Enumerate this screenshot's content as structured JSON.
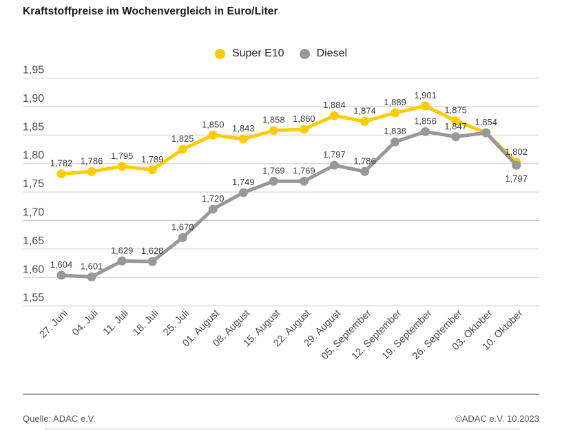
{
  "title": "Kraftstoffpreise im Wochenvergleich in Euro/Liter",
  "footer": {
    "source": "Quelle: ADAC e.V.",
    "copyright": "©ADAC e.V. 10.2023"
  },
  "colors": {
    "super_e10": "#ffcc00",
    "diesel": "#989898",
    "grid": "#cccccc",
    "axis_label": "#4a4a4a",
    "value_label": "#3c3c3c",
    "title_text": "#1a1a1a",
    "footer_text": "#555555",
    "divider": "#a3a3a3",
    "bottom_bar": "#e9ecf2"
  },
  "chart_data": {
    "type": "line",
    "title": "Kraftstoffpreise im Wochenvergleich in Euro/Liter",
    "xlabel": "",
    "ylabel": "Euro/Liter",
    "ylim": [
      1.55,
      1.95
    ],
    "yticks": [
      1.95,
      1.9,
      1.85,
      1.8,
      1.75,
      1.7,
      1.65,
      1.6,
      1.55
    ],
    "grid": "horizontal",
    "legend_position": "top-center",
    "categories": [
      "27. Juni",
      "04. Juli",
      "11. Juli",
      "18. Juli",
      "25. Juli",
      "01. August",
      "08. August",
      "15. August",
      "22. August",
      "29. August",
      "05. September",
      "12. September",
      "19. September",
      "26. September",
      "03. Oktober",
      "10. Oktober"
    ],
    "series": [
      {
        "name": "Super E10",
        "color": "#ffcc00",
        "values": [
          1.782,
          1.786,
          1.795,
          1.789,
          1.825,
          1.85,
          1.843,
          1.858,
          1.86,
          1.884,
          1.874,
          1.889,
          1.901,
          1.875,
          1.854,
          1.802
        ]
      },
      {
        "name": "Diesel",
        "color": "#989898",
        "values": [
          1.604,
          1.601,
          1.629,
          1.628,
          1.67,
          1.72,
          1.749,
          1.769,
          1.769,
          1.797,
          1.786,
          1.838,
          1.856,
          1.847,
          1.854,
          1.797
        ]
      }
    ],
    "point_labels": {
      "decimal_comma": true,
      "hidden": [
        [
          0,
          14
        ]
      ],
      "below": [
        [
          1,
          15
        ]
      ]
    }
  }
}
